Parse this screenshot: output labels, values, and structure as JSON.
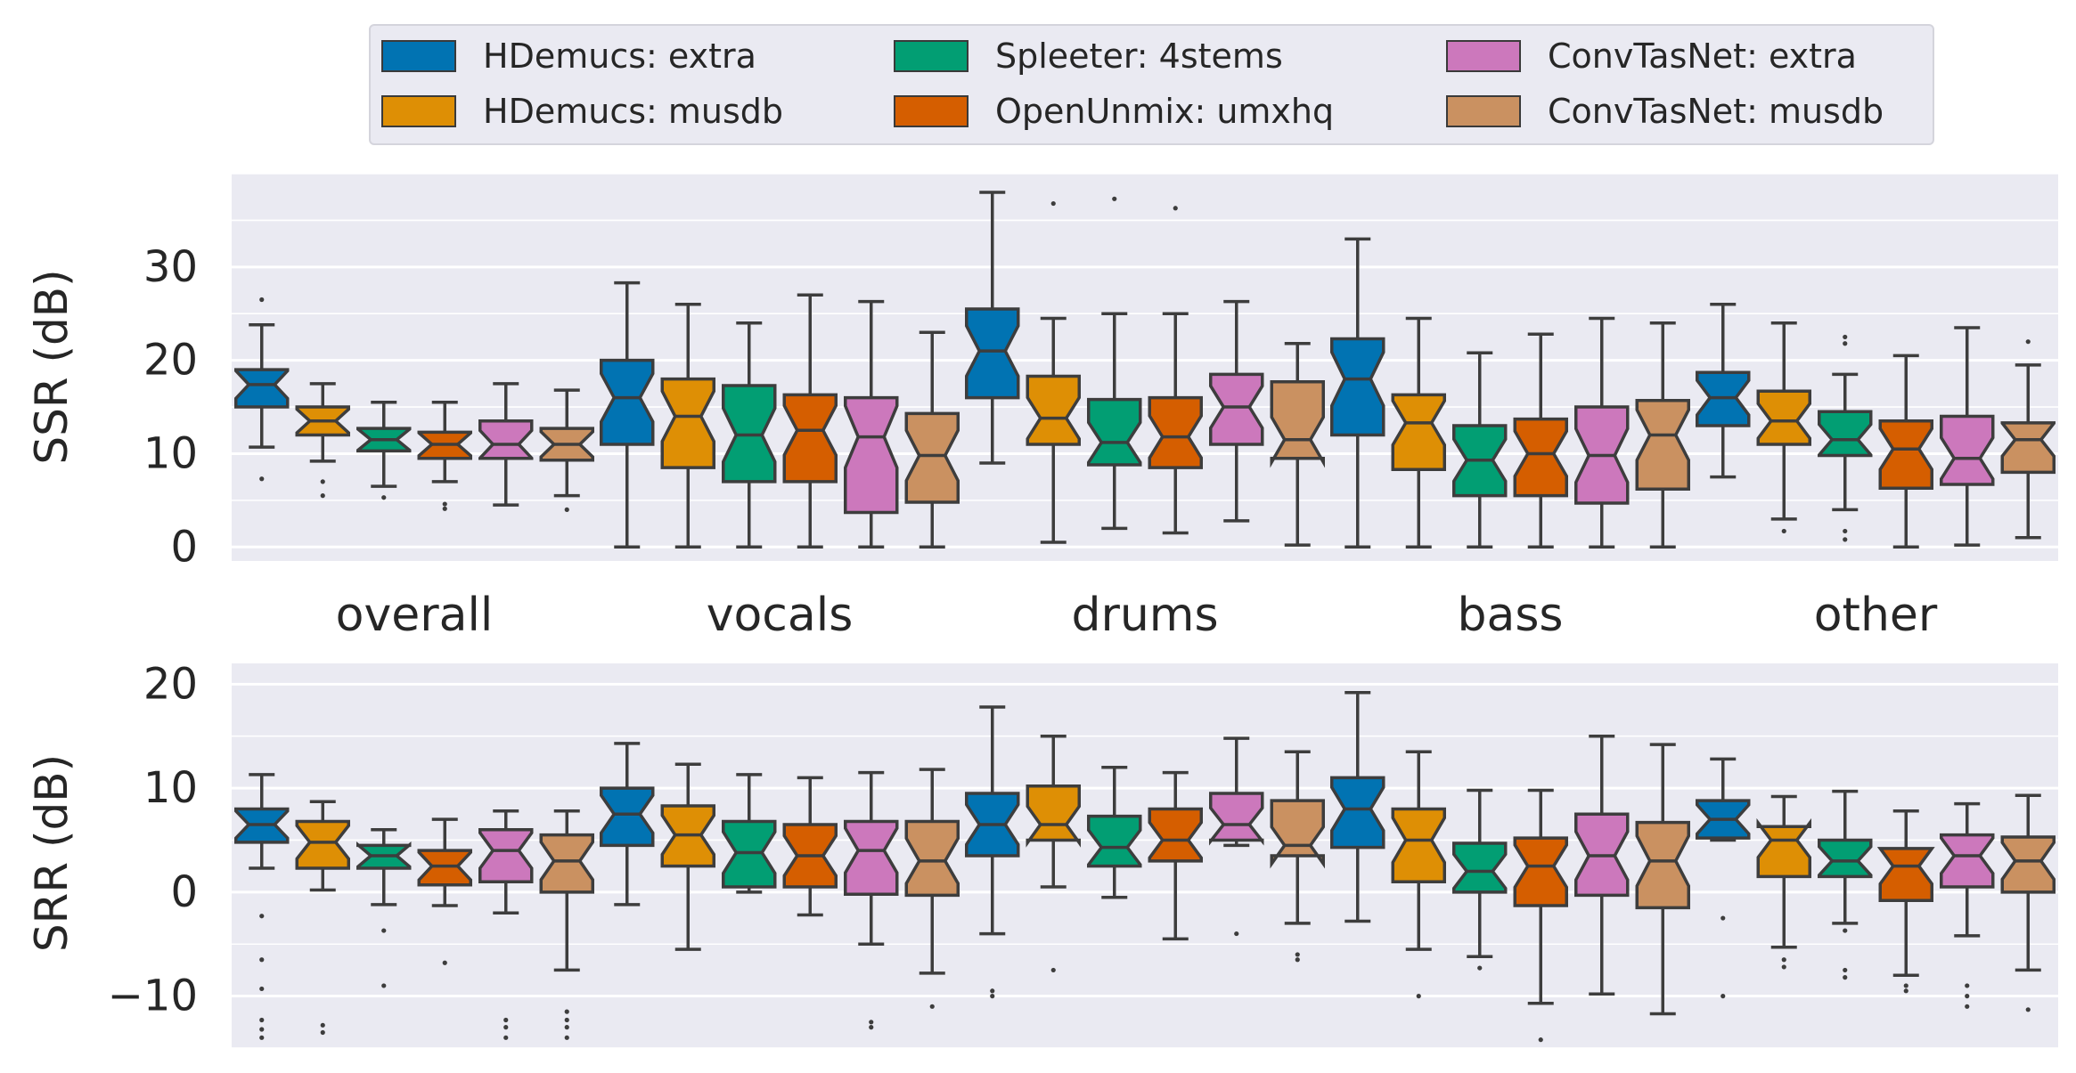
{
  "colors": {
    "series": [
      "#0173b2",
      "#de8f05",
      "#029e73",
      "#d55e00",
      "#cc78bc",
      "#ca9161"
    ],
    "panel_bg": "#eaeaf2",
    "grid": "#ffffff",
    "edge": "#3d3d3d"
  },
  "legend": {
    "entries": [
      "HDemucs: extra",
      "HDemucs: musdb",
      "Spleeter: 4stems",
      "OpenUnmix: umxhq",
      "ConvTasNet: extra",
      "ConvTasNet: musdb"
    ],
    "placement": "top-center, 3 columns"
  },
  "chart_data": [
    {
      "type": "box",
      "notched": true,
      "ylabel": "SSR (dB)",
      "ylim": [
        -1.5,
        40
      ],
      "yticks": [
        0,
        10,
        20,
        30
      ],
      "ytick_labels": [
        "0",
        "10",
        "20",
        "30"
      ],
      "grid": true,
      "categories": [
        "overall",
        "vocals",
        "drums",
        "bass",
        "other"
      ],
      "series": [
        {
          "name": "HDemucs: extra",
          "boxes": [
            {
              "min": 10.7,
              "q1": 15.0,
              "median": 17.4,
              "q3": 19.0,
              "max": 23.8,
              "outliers": [
                26.5,
                7.3
              ]
            },
            {
              "min": 0.0,
              "q1": 11.0,
              "median": 16.0,
              "q3": 20.0,
              "max": 28.3,
              "outliers": []
            },
            {
              "min": 9.0,
              "q1": 16.0,
              "median": 21.0,
              "q3": 25.5,
              "max": 38.0,
              "outliers": []
            },
            {
              "min": 0.0,
              "q1": 12.0,
              "median": 18.0,
              "q3": 22.3,
              "max": 33.0,
              "outliers": []
            },
            {
              "min": 7.5,
              "q1": 13.0,
              "median": 16.0,
              "q3": 18.7,
              "max": 26.0,
              "outliers": []
            }
          ]
        },
        {
          "name": "HDemucs: musdb",
          "boxes": [
            {
              "min": 9.2,
              "q1": 12.0,
              "median": 13.5,
              "q3": 15.0,
              "max": 17.5,
              "outliers": [
                7.0,
                5.5
              ]
            },
            {
              "min": 0.0,
              "q1": 8.5,
              "median": 14.0,
              "q3": 18.0,
              "max": 26.0,
              "outliers": []
            },
            {
              "min": 0.5,
              "q1": 11.0,
              "median": 13.8,
              "q3": 18.3,
              "max": 24.5,
              "outliers": [
                36.8
              ]
            },
            {
              "min": 0.0,
              "q1": 8.3,
              "median": 13.3,
              "q3": 16.3,
              "max": 24.5,
              "outliers": []
            },
            {
              "min": 3.0,
              "q1": 11.0,
              "median": 13.5,
              "q3": 16.7,
              "max": 24.0,
              "outliers": [
                1.7
              ]
            }
          ]
        },
        {
          "name": "Spleeter: 4stems",
          "boxes": [
            {
              "min": 6.5,
              "q1": 10.3,
              "median": 11.5,
              "q3": 12.7,
              "max": 15.5,
              "outliers": [
                5.3
              ]
            },
            {
              "min": 0.0,
              "q1": 7.0,
              "median": 12.0,
              "q3": 17.3,
              "max": 24.0,
              "outliers": []
            },
            {
              "min": 2.0,
              "q1": 8.8,
              "median": 11.2,
              "q3": 15.8,
              "max": 25.0,
              "outliers": [
                37.3
              ]
            },
            {
              "min": 0.0,
              "q1": 5.5,
              "median": 9.3,
              "q3": 13.0,
              "max": 20.8,
              "outliers": []
            },
            {
              "min": 4.0,
              "q1": 9.8,
              "median": 11.5,
              "q3": 14.5,
              "max": 18.5,
              "outliers": [
                22.5,
                21.8,
                1.7,
                0.8
              ]
            }
          ]
        },
        {
          "name": "OpenUnmix: umxhq",
          "boxes": [
            {
              "min": 7.0,
              "q1": 9.5,
              "median": 11.0,
              "q3": 12.3,
              "max": 15.5,
              "outliers": [
                4.6,
                4.1
              ]
            },
            {
              "min": 0.0,
              "q1": 7.0,
              "median": 12.5,
              "q3": 16.3,
              "max": 27.0,
              "outliers": []
            },
            {
              "min": 1.5,
              "q1": 8.5,
              "median": 11.8,
              "q3": 16.0,
              "max": 25.0,
              "outliers": [
                36.3
              ]
            },
            {
              "min": 0.0,
              "q1": 5.5,
              "median": 10.0,
              "q3": 13.7,
              "max": 22.8,
              "outliers": []
            },
            {
              "min": 0.0,
              "q1": 6.3,
              "median": 10.5,
              "q3": 13.5,
              "max": 20.5,
              "outliers": []
            }
          ]
        },
        {
          "name": "ConvTasNet: extra",
          "boxes": [
            {
              "min": 4.5,
              "q1": 9.5,
              "median": 11.0,
              "q3": 13.5,
              "max": 17.5,
              "outliers": []
            },
            {
              "min": 0.0,
              "q1": 3.7,
              "median": 11.8,
              "q3": 16.0,
              "max": 26.3,
              "outliers": []
            },
            {
              "min": 2.8,
              "q1": 11.0,
              "median": 15.0,
              "q3": 18.5,
              "max": 26.3,
              "outliers": []
            },
            {
              "min": 0.0,
              "q1": 4.7,
              "median": 9.8,
              "q3": 15.0,
              "max": 24.5,
              "outliers": []
            },
            {
              "min": 0.2,
              "q1": 6.7,
              "median": 9.5,
              "q3": 14.0,
              "max": 23.5,
              "outliers": []
            }
          ]
        },
        {
          "name": "ConvTasNet: musdb",
          "boxes": [
            {
              "min": 5.5,
              "q1": 9.3,
              "median": 11.0,
              "q3": 12.7,
              "max": 16.8,
              "outliers": [
                4.0
              ]
            },
            {
              "min": 0.0,
              "q1": 4.8,
              "median": 9.8,
              "q3": 14.3,
              "max": 23.0,
              "outliers": []
            },
            {
              "min": 0.2,
              "q1": 9.5,
              "median": 11.5,
              "q3": 17.7,
              "max": 21.8,
              "outliers": []
            },
            {
              "min": 0.0,
              "q1": 6.2,
              "median": 12.0,
              "q3": 15.7,
              "max": 24.0,
              "outliers": []
            },
            {
              "min": 1.0,
              "q1": 8.0,
              "median": 11.5,
              "q3": 13.3,
              "max": 19.5,
              "outliers": [
                22.0
              ]
            }
          ]
        }
      ]
    },
    {
      "type": "box",
      "notched": true,
      "ylabel": "SRR (dB)",
      "ylim": [
        -15,
        22
      ],
      "yticks": [
        -10,
        0,
        10,
        20
      ],
      "ytick_labels": [
        "−10",
        "0",
        "10",
        "20"
      ],
      "grid": true,
      "categories": [
        "overall",
        "vocals",
        "drums",
        "bass",
        "other"
      ],
      "series": [
        {
          "name": "HDemucs: extra",
          "boxes": [
            {
              "min": 2.3,
              "q1": 4.8,
              "median": 6.5,
              "q3": 8.0,
              "max": 11.3,
              "outliers": [
                -2.3,
                -6.5,
                -9.3,
                -12.3,
                -13.2,
                -14.0
              ]
            },
            {
              "min": -1.2,
              "q1": 4.5,
              "median": 7.5,
              "q3": 10.0,
              "max": 14.3,
              "outliers": []
            },
            {
              "min": -4.0,
              "q1": 3.5,
              "median": 6.5,
              "q3": 9.5,
              "max": 17.8,
              "outliers": [
                -9.5,
                -10.0
              ]
            },
            {
              "min": -2.8,
              "q1": 4.3,
              "median": 8.0,
              "q3": 11.0,
              "max": 19.2,
              "outliers": []
            },
            {
              "min": 5.0,
              "q1": 5.2,
              "median": 7.0,
              "q3": 8.8,
              "max": 12.8,
              "outliers": [
                -2.5,
                -10.0
              ]
            }
          ]
        },
        {
          "name": "HDemucs: musdb",
          "boxes": [
            {
              "min": 0.2,
              "q1": 2.3,
              "median": 4.8,
              "q3": 6.8,
              "max": 8.7,
              "outliers": [
                -12.8,
                -13.5
              ]
            },
            {
              "min": -5.5,
              "q1": 2.5,
              "median": 5.5,
              "q3": 8.3,
              "max": 12.3,
              "outliers": []
            },
            {
              "min": 0.5,
              "q1": 5.0,
              "median": 6.5,
              "q3": 10.2,
              "max": 15.0,
              "outliers": [
                -7.5
              ]
            },
            {
              "min": -5.5,
              "q1": 1.0,
              "median": 5.0,
              "q3": 8.0,
              "max": 13.5,
              "outliers": [
                -10.0
              ]
            },
            {
              "min": -5.3,
              "q1": 1.5,
              "median": 5.0,
              "q3": 6.3,
              "max": 9.2,
              "outliers": [
                -6.5,
                -7.2
              ]
            }
          ]
        },
        {
          "name": "Spleeter: 4stems",
          "boxes": [
            {
              "min": -1.2,
              "q1": 2.3,
              "median": 3.5,
              "q3": 4.5,
              "max": 6.0,
              "outliers": [
                -3.7,
                -9.0
              ]
            },
            {
              "min": 0.0,
              "q1": 0.5,
              "median": 3.8,
              "q3": 6.8,
              "max": 11.3,
              "outliers": []
            },
            {
              "min": -0.5,
              "q1": 2.5,
              "median": 4.3,
              "q3": 7.3,
              "max": 12.0,
              "outliers": []
            },
            {
              "min": -6.2,
              "q1": 0.0,
              "median": 2.0,
              "q3": 4.7,
              "max": 9.8,
              "outliers": [
                -7.3
              ]
            },
            {
              "min": -3.0,
              "q1": 1.5,
              "median": 3.0,
              "q3": 5.0,
              "max": 9.7,
              "outliers": [
                -3.7,
                -7.5,
                -8.2
              ]
            }
          ]
        },
        {
          "name": "OpenUnmix: umxhq",
          "boxes": [
            {
              "min": -1.3,
              "q1": 0.7,
              "median": 2.5,
              "q3": 4.0,
              "max": 7.0,
              "outliers": [
                -6.8
              ]
            },
            {
              "min": -2.2,
              "q1": 0.5,
              "median": 3.5,
              "q3": 6.5,
              "max": 11.0,
              "outliers": []
            },
            {
              "min": -4.5,
              "q1": 3.0,
              "median": 5.0,
              "q3": 8.0,
              "max": 11.5,
              "outliers": []
            },
            {
              "min": -10.7,
              "q1": -1.3,
              "median": 2.5,
              "q3": 5.2,
              "max": 9.8,
              "outliers": [
                -14.2
              ]
            },
            {
              "min": -8.0,
              "q1": -0.8,
              "median": 2.5,
              "q3": 4.2,
              "max": 7.8,
              "outliers": [
                -9.0,
                -9.5
              ]
            }
          ]
        },
        {
          "name": "ConvTasNet: extra",
          "boxes": [
            {
              "min": -2.0,
              "q1": 1.0,
              "median": 4.0,
              "q3": 6.0,
              "max": 7.8,
              "outliers": [
                -12.3,
                -13.0,
                -14.0
              ]
            },
            {
              "min": -5.0,
              "q1": -0.2,
              "median": 4.0,
              "q3": 6.8,
              "max": 11.5,
              "outliers": [
                -12.5,
                -13.0
              ]
            },
            {
              "min": 4.5,
              "q1": 5.0,
              "median": 6.5,
              "q3": 9.5,
              "max": 14.8,
              "outliers": [
                -4.0
              ]
            },
            {
              "min": -9.8,
              "q1": -0.3,
              "median": 3.5,
              "q3": 7.5,
              "max": 15.0,
              "outliers": []
            },
            {
              "min": -4.2,
              "q1": 0.5,
              "median": 3.5,
              "q3": 5.5,
              "max": 8.5,
              "outliers": [
                -9.0,
                -10.0,
                -11.0
              ]
            }
          ]
        },
        {
          "name": "ConvTasNet: musdb",
          "boxes": [
            {
              "min": -7.5,
              "q1": 0.0,
              "median": 3.0,
              "q3": 5.5,
              "max": 7.8,
              "outliers": [
                -11.5,
                -12.3,
                -13.0,
                -14.0
              ]
            },
            {
              "min": -7.8,
              "q1": -0.3,
              "median": 3.0,
              "q3": 6.8,
              "max": 11.8,
              "outliers": [
                -11.0
              ]
            },
            {
              "min": -3.0,
              "q1": 3.5,
              "median": 4.5,
              "q3": 8.8,
              "max": 13.5,
              "outliers": [
                -6.0,
                -6.5
              ]
            },
            {
              "min": -11.7,
              "q1": -1.5,
              "median": 3.0,
              "q3": 6.7,
              "max": 14.2,
              "outliers": []
            },
            {
              "min": -7.5,
              "q1": 0.0,
              "median": 3.0,
              "q3": 5.3,
              "max": 9.3,
              "outliers": [
                -11.3
              ]
            }
          ]
        }
      ]
    }
  ]
}
